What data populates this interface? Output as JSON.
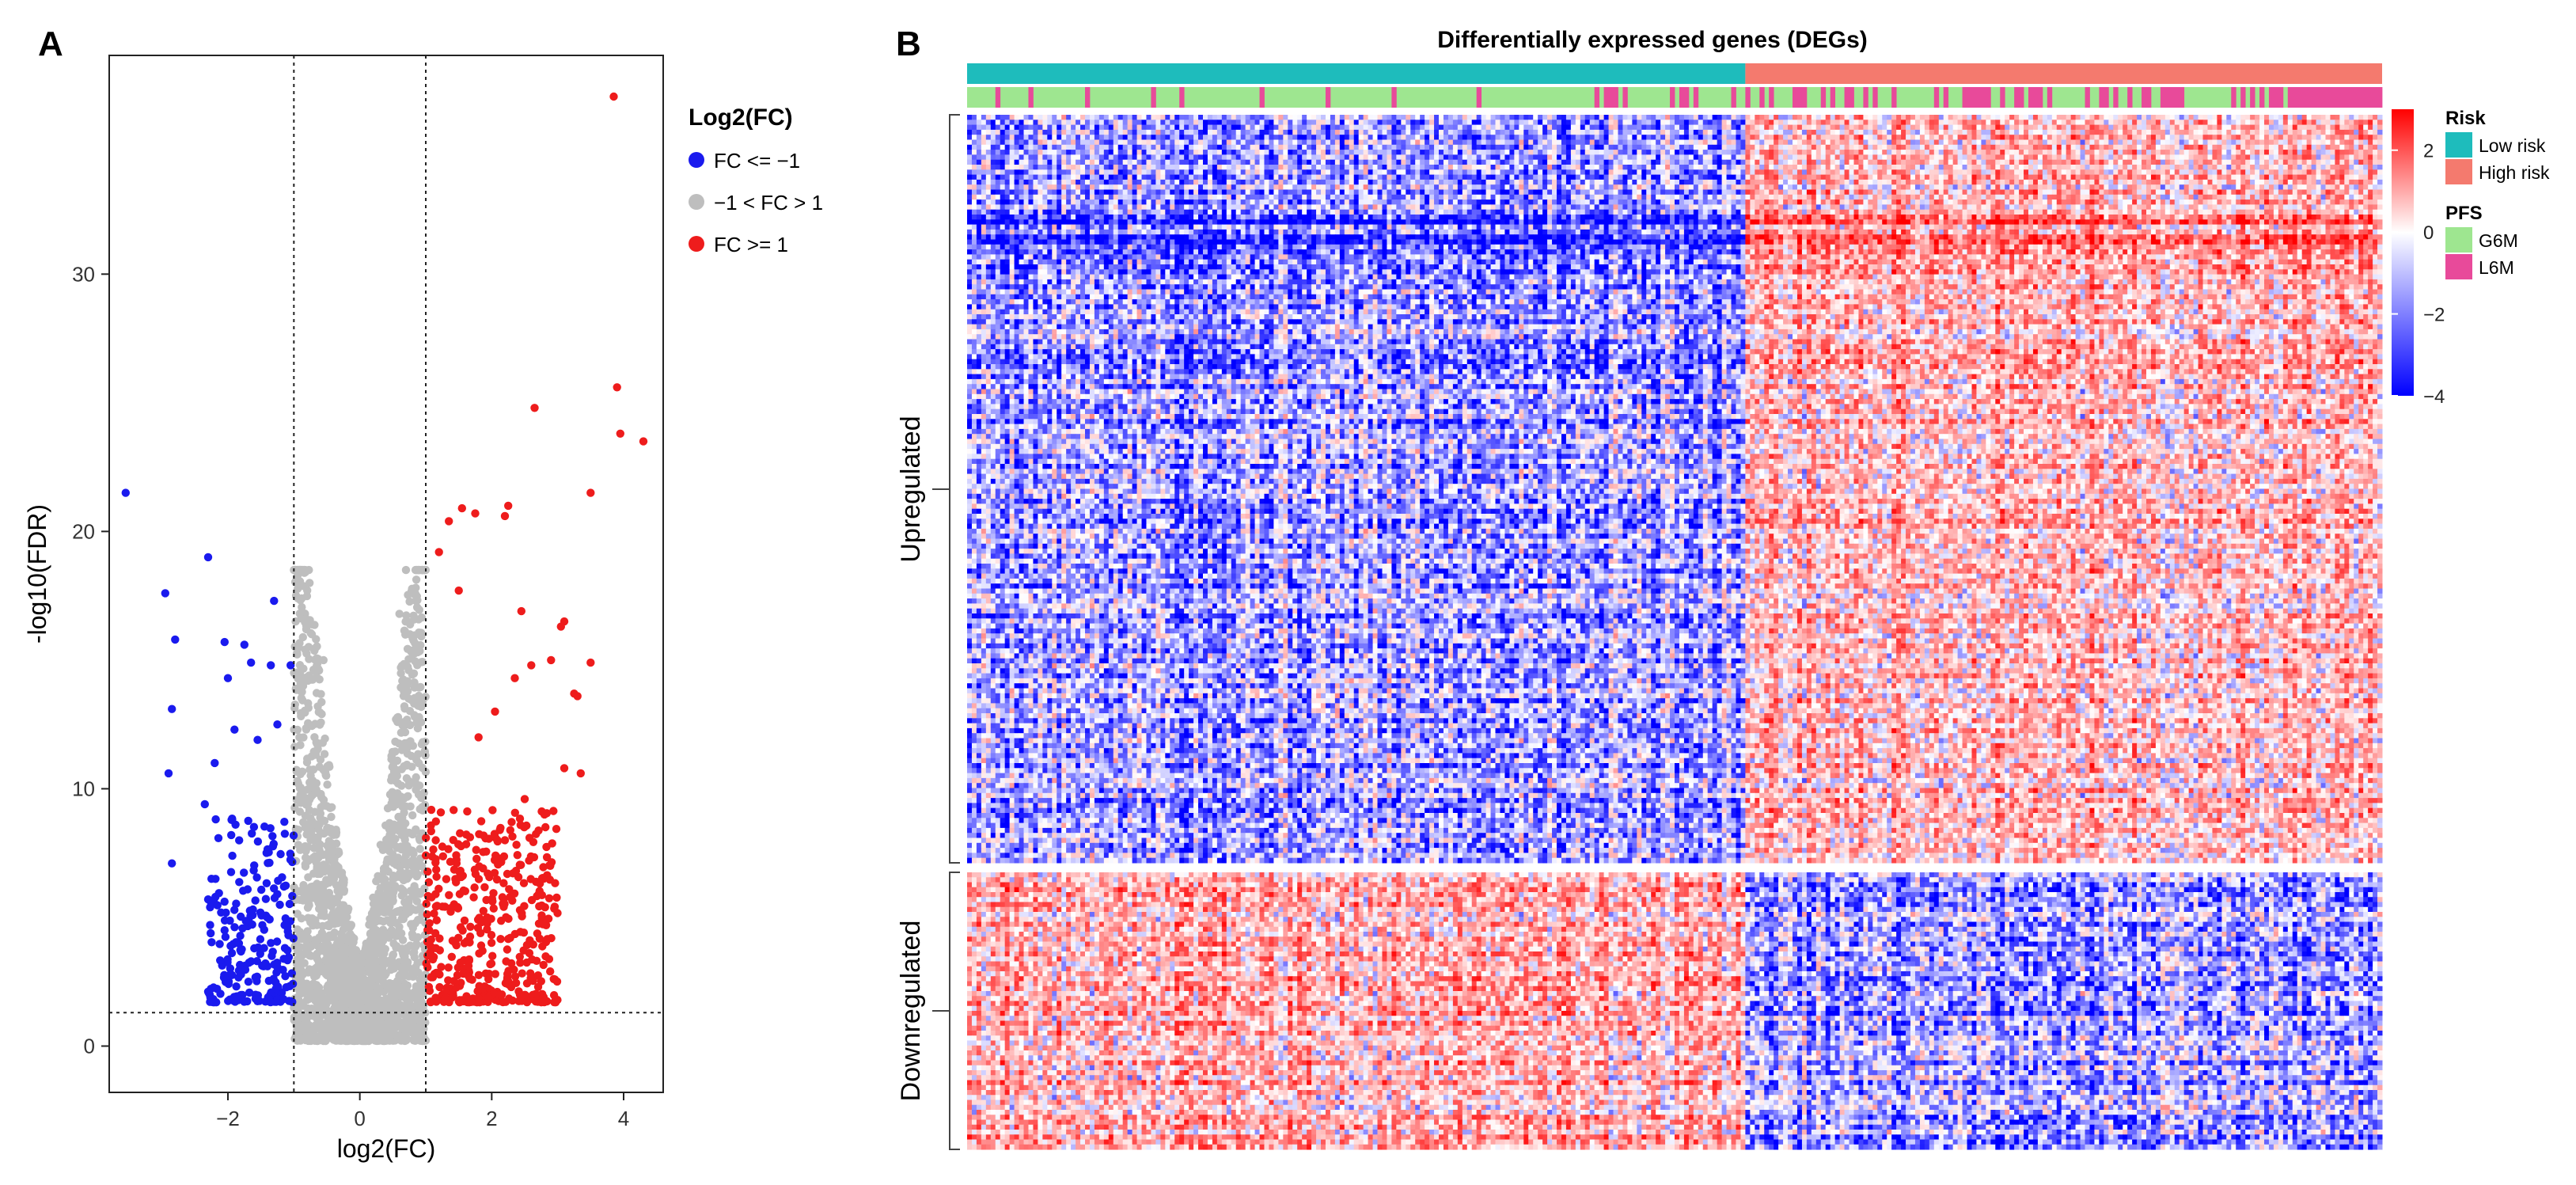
{
  "panels": {
    "a_label": "A",
    "b_label": "B"
  },
  "chart_data": [
    {
      "type": "scatter",
      "subtype": "volcano",
      "xlabel": "log2(FC)",
      "ylabel": "-log10(FDR)",
      "xlim": [
        -3.8,
        4.6
      ],
      "ylim": [
        -1.8,
        38.5
      ],
      "x_ticks": [
        -2,
        0,
        2,
        4
      ],
      "x_tick_labels": [
        "−2",
        "0",
        "2",
        "4"
      ],
      "y_ticks": [
        0,
        10,
        20,
        30
      ],
      "y_tick_labels": [
        "0",
        "10",
        "20",
        "30"
      ],
      "threshold_lines": {
        "x": [
          -1,
          1
        ],
        "y": 1.3
      },
      "legend": {
        "title": "Log2(FC)",
        "position": "right",
        "entries": [
          {
            "label": "FC <= −1",
            "color": "#1a1aee"
          },
          {
            "label": "−1 < FC > 1",
            "color": "#bebebe"
          },
          {
            "label": "FC >= 1",
            "color": "#ee1c1c"
          }
        ]
      },
      "series": [
        {
          "name": "FC <= −1",
          "color": "#1a1aee",
          "points": [
            [
              -3.55,
              21.5
            ],
            [
              -2.95,
              17.6
            ],
            [
              -2.8,
              15.8
            ],
            [
              -2.85,
              13.1
            ],
            [
              -2.9,
              10.6
            ],
            [
              -2.85,
              7.1
            ],
            [
              -2.3,
              19.0
            ],
            [
              -2.05,
              15.7
            ],
            [
              -2.0,
              14.3
            ],
            [
              -1.75,
              15.6
            ],
            [
              -1.65,
              14.9
            ],
            [
              -1.3,
              17.3
            ],
            [
              -1.35,
              14.8
            ],
            [
              -1.05,
              14.8
            ],
            [
              -1.25,
              12.5
            ],
            [
              -1.55,
              11.9
            ],
            [
              -1.9,
              12.3
            ],
            [
              -2.2,
              11.0
            ],
            [
              -2.35,
              9.4
            ],
            [
              -2.25,
              6.5
            ],
            [
              -2.3,
              5.7
            ],
            [
              -1.95,
              8.2
            ],
            [
              -2.05,
              4.5
            ],
            [
              -1.6,
              3.8
            ],
            [
              -1.15,
              6.2
            ],
            [
              -1.4,
              3.1
            ]
          ],
          "cloud": {
            "n": 210,
            "x_range": [
              -2.3,
              -1.0
            ],
            "fdr_scale": 7.2,
            "seed": 11
          }
        },
        {
          "name": "−1 < FC > 1",
          "color": "#bebebe",
          "points": [
            [
              -0.55,
              15.0
            ],
            [
              0.7,
              18.5
            ],
            [
              0.6,
              16.8
            ],
            [
              -0.9,
              14.1
            ]
          ],
          "cloud": {
            "n": 2300,
            "x_range": [
              -1.0,
              1.0
            ],
            "fdr_scale": 22,
            "seed": 7
          }
        },
        {
          "name": "FC >= 1",
          "color": "#ee1c1c",
          "points": [
            [
              3.85,
              36.9
            ],
            [
              3.9,
              25.6
            ],
            [
              4.3,
              23.5
            ],
            [
              3.95,
              23.8
            ],
            [
              2.65,
              24.8
            ],
            [
              3.5,
              21.5
            ],
            [
              2.25,
              21.0
            ],
            [
              2.2,
              20.6
            ],
            [
              1.55,
              20.9
            ],
            [
              1.75,
              20.7
            ],
            [
              1.35,
              20.4
            ],
            [
              2.45,
              16.9
            ],
            [
              3.1,
              16.5
            ],
            [
              3.05,
              16.3
            ],
            [
              2.6,
              14.8
            ],
            [
              2.9,
              15.0
            ],
            [
              3.5,
              14.9
            ],
            [
              2.35,
              14.3
            ],
            [
              3.25,
              13.7
            ],
            [
              3.3,
              13.6
            ],
            [
              2.05,
              13.0
            ],
            [
              3.35,
              10.6
            ],
            [
              3.1,
              10.8
            ],
            [
              2.5,
              9.6
            ],
            [
              2.8,
              9.0
            ],
            [
              2.2,
              8.0
            ],
            [
              1.8,
              12.0
            ],
            [
              1.5,
              17.7
            ],
            [
              1.2,
              19.2
            ]
          ],
          "cloud": {
            "n": 430,
            "x_range": [
              1.0,
              3.0
            ],
            "fdr_scale": 7.5,
            "seed": 23
          }
        }
      ]
    },
    {
      "type": "heatmap",
      "title": "Differentially expressed genes (DEGs)",
      "row_groups": [
        {
          "label": "Upregulated",
          "n_rows": 150,
          "low_risk_mean": -0.75,
          "high_risk_mean": 0.75
        },
        {
          "label": "Downregulated",
          "n_rows": 56,
          "low_risk_mean": 0.8,
          "high_risk_mean": -0.8
        }
      ],
      "n_samples": 300,
      "low_risk_samples": 165,
      "high_risk_samples": 135,
      "color_scale": {
        "min": -4,
        "max": 3,
        "colors": [
          "#0000ff",
          "#ffffff",
          "#ff0000"
        ],
        "ticks": [
          2,
          0,
          -2,
          -4
        ],
        "tick_labels": [
          "2",
          "0",
          "−2",
          "−4"
        ]
      },
      "annotation_legends": [
        {
          "title": "Risk",
          "entries": [
            {
              "label": "Low risk",
              "color": "#1ebcbc"
            },
            {
              "label": "High risk",
              "color": "#f47a6e"
            }
          ]
        },
        {
          "title": "PFS",
          "entries": [
            {
              "label": "G6M",
              "color": "#9ee690"
            },
            {
              "label": "L6M",
              "color": "#e84a9a"
            }
          ]
        }
      ]
    }
  ]
}
